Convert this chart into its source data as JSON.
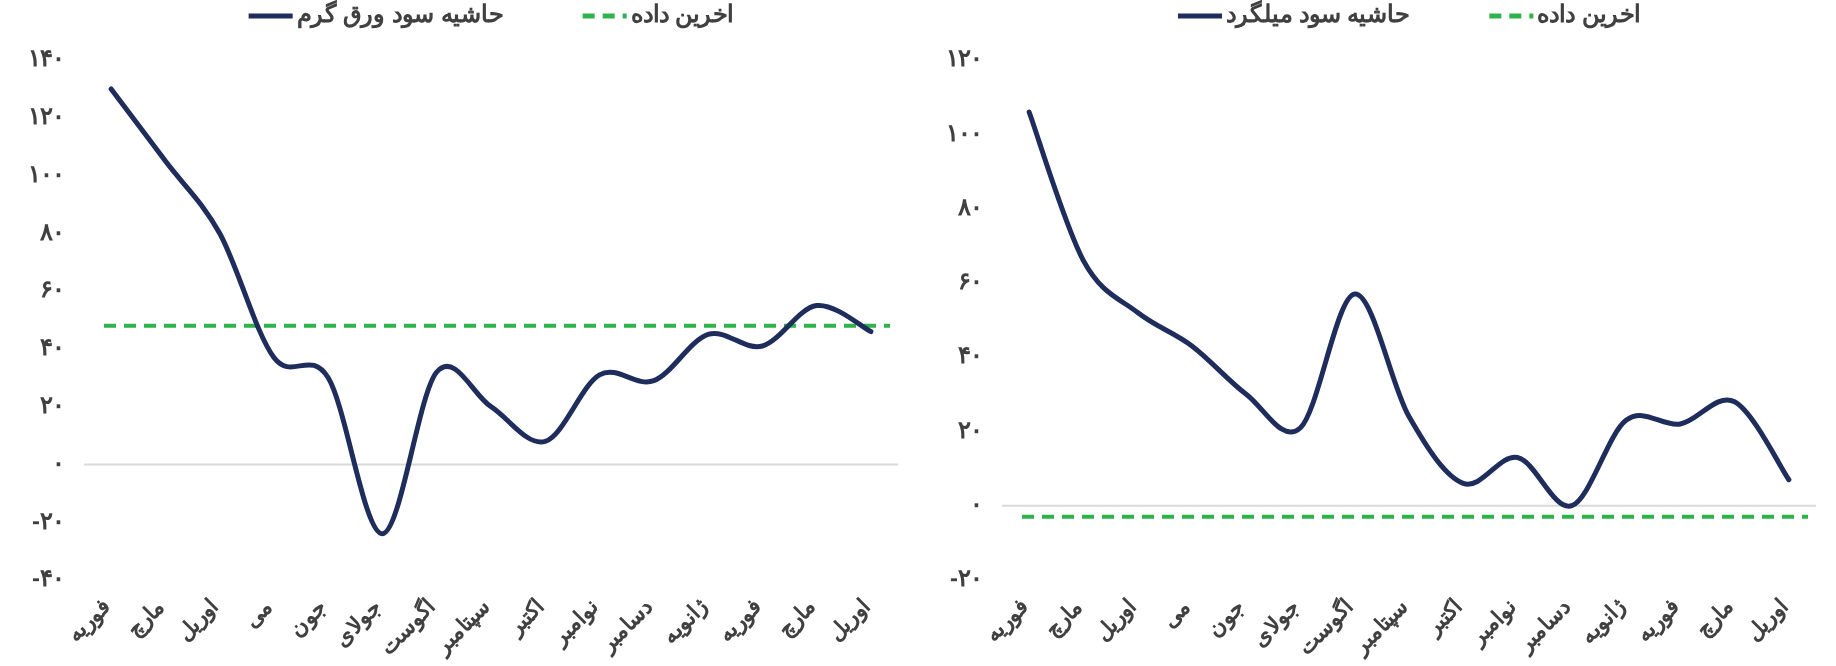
{
  "chart_data": [
    {
      "type": "line",
      "categories": [
        "فوریه",
        "مارچ",
        "اوریل",
        "می",
        "جون",
        "جولای",
        "اگوست",
        "سپتامبر",
        "اکتبر",
        "نوامبر",
        "دسامبر",
        "ژانویه",
        "فوریه",
        "مارچ",
        "اوریل"
      ],
      "series": [
        {
          "name": "حاشیه سود ورق گرم",
          "color": "#1f2d5c",
          "values": [
            130,
            105,
            80,
            37,
            30,
            -24,
            32,
            20,
            8,
            31,
            29,
            45,
            41,
            55,
            46
          ]
        }
      ],
      "ref_lines": [
        {
          "axis": "y",
          "value": 48,
          "label": "اخرین داده",
          "color": "#2db34a",
          "line_style": "dashed"
        }
      ],
      "ylim": [
        -40,
        140
      ],
      "yticks": [
        {
          "value": -40,
          "label": "-۴۰"
        },
        {
          "value": -20,
          "label": "-۲۰"
        },
        {
          "value": 0,
          "label": "۰"
        },
        {
          "value": 20,
          "label": "۲۰"
        },
        {
          "value": 40,
          "label": "۴۰"
        },
        {
          "value": 60,
          "label": "۶۰"
        },
        {
          "value": 80,
          "label": "۸۰"
        },
        {
          "value": 100,
          "label": "۱۰۰"
        },
        {
          "value": 120,
          "label": "۱۲۰"
        },
        {
          "value": 140,
          "label": "۱۴۰"
        }
      ],
      "legend": "top"
    },
    {
      "type": "line",
      "categories": [
        "فوریه",
        "مارچ",
        "اوریل",
        "می",
        "جون",
        "جولای",
        "اگوست",
        "سپتامبر",
        "اکتبر",
        "نوامبر",
        "دسامبر",
        "ژانویه",
        "فوریه",
        "مارچ",
        "اوریل"
      ],
      "series": [
        {
          "name": "حاشیه سود میلگرد",
          "color": "#1f2d5c",
          "values": [
            106,
            66,
            52,
            43,
            30,
            21,
            57,
            24,
            6,
            13,
            0,
            23,
            22,
            28,
            7
          ]
        }
      ],
      "ref_lines": [
        {
          "axis": "y",
          "value": -3,
          "label": "اخرین داده",
          "color": "#2db34a",
          "line_style": "dashed"
        }
      ],
      "ylim": [
        -20,
        120
      ],
      "yticks": [
        {
          "value": -20,
          "label": "-۲۰"
        },
        {
          "value": 0,
          "label": "۰"
        },
        {
          "value": 20,
          "label": "۲۰"
        },
        {
          "value": 40,
          "label": "۴۰"
        },
        {
          "value": 60,
          "label": "۶۰"
        },
        {
          "value": 80,
          "label": "۸۰"
        },
        {
          "value": 100,
          "label": "۱۰۰"
        },
        {
          "value": 120,
          "label": "۱۲۰"
        }
      ],
      "legend": "top"
    }
  ]
}
